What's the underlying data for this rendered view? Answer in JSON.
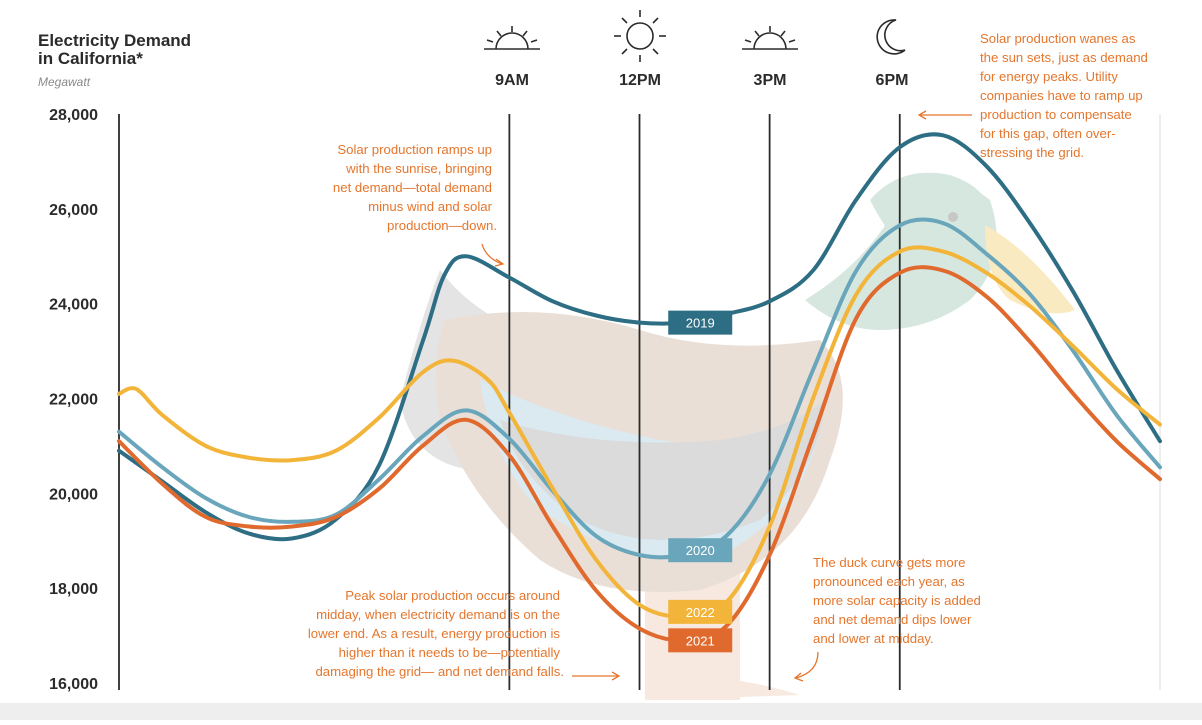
{
  "colors": {
    "y2019": "#2d6e84",
    "y2020": "#6aa6bb",
    "y2021": "#e0692e",
    "y2022": "#f2b53a",
    "annotation": "#e5762d",
    "text": "#2b2b2b",
    "gridline": "#2b2b2b"
  },
  "chart_data": {
    "type": "line",
    "title": "Electricity Demand in California*",
    "title_lines": [
      "Electricity Demand",
      "in California*"
    ],
    "ylabel": "Megawatt",
    "ylim": [
      16000,
      28000
    ],
    "yticks": [
      {
        "value": 16000,
        "label": "16,000"
      },
      {
        "value": 18000,
        "label": "18,000"
      },
      {
        "value": 20000,
        "label": "20,000"
      },
      {
        "value": 22000,
        "label": "22,000"
      },
      {
        "value": 24000,
        "label": "24,000"
      },
      {
        "value": 26000,
        "label": "26,000"
      },
      {
        "value": 28000,
        "label": "28,000"
      }
    ],
    "xlim": [
      0,
      24
    ],
    "x_gridlines": [
      0,
      9,
      12,
      15,
      18,
      24
    ],
    "time_labels": [
      {
        "x": 9,
        "label": "9AM",
        "icon": "sunrise-icon"
      },
      {
        "x": 12,
        "label": "12PM",
        "icon": "sun-icon"
      },
      {
        "x": 15,
        "label": "3PM",
        "icon": "afternoon-sun-icon"
      },
      {
        "x": 18,
        "label": "6PM",
        "icon": "moon-icon"
      }
    ],
    "series": [
      {
        "name": "2019",
        "key": "y2019",
        "points": [
          [
            0,
            20900
          ],
          [
            1,
            20250
          ],
          [
            2,
            19600
          ],
          [
            3,
            19150
          ],
          [
            4,
            19050
          ],
          [
            5,
            19450
          ],
          [
            6,
            20600
          ],
          [
            7,
            23200
          ],
          [
            7.5,
            24600
          ],
          [
            8,
            25000
          ],
          [
            9,
            24550
          ],
          [
            10,
            24050
          ],
          [
            11,
            23750
          ],
          [
            12,
            23600
          ],
          [
            13,
            23600
          ],
          [
            14,
            23780
          ],
          [
            15,
            24050
          ],
          [
            16,
            24700
          ],
          [
            17,
            26200
          ],
          [
            18,
            27300
          ],
          [
            19,
            27550
          ],
          [
            20,
            26900
          ],
          [
            21,
            25700
          ],
          [
            22,
            24250
          ],
          [
            23,
            22600
          ],
          [
            24,
            21100
          ]
        ],
        "label_at": [
          13.4,
          23600
        ]
      },
      {
        "name": "2020",
        "key": "y2020",
        "points": [
          [
            0,
            21300
          ],
          [
            1,
            20550
          ],
          [
            2,
            19900
          ],
          [
            3,
            19500
          ],
          [
            4,
            19400
          ],
          [
            5,
            19550
          ],
          [
            6,
            20300
          ],
          [
            7,
            21200
          ],
          [
            8,
            21750
          ],
          [
            9,
            21150
          ],
          [
            10,
            20050
          ],
          [
            11,
            19100
          ],
          [
            12,
            18700
          ],
          [
            13,
            18700
          ],
          [
            14,
            19100
          ],
          [
            15,
            20400
          ],
          [
            16,
            22600
          ],
          [
            17,
            24700
          ],
          [
            18,
            25650
          ],
          [
            19,
            25700
          ],
          [
            20,
            25050
          ],
          [
            21,
            24200
          ],
          [
            22,
            23000
          ],
          [
            23,
            21650
          ],
          [
            24,
            20550
          ]
        ],
        "label_at": [
          13.4,
          18800
        ]
      },
      {
        "name": "2021",
        "key": "y2021",
        "points": [
          [
            0,
            21100
          ],
          [
            1,
            20200
          ],
          [
            2,
            19500
          ],
          [
            3,
            19300
          ],
          [
            4,
            19300
          ],
          [
            5,
            19500
          ],
          [
            6,
            20100
          ],
          [
            7,
            21000
          ],
          [
            8,
            21550
          ],
          [
            9,
            20800
          ],
          [
            10,
            19300
          ],
          [
            11,
            17950
          ],
          [
            12,
            17150
          ],
          [
            13,
            16900
          ],
          [
            14,
            17200
          ],
          [
            15,
            18700
          ],
          [
            16,
            21200
          ],
          [
            17,
            23700
          ],
          [
            18,
            24650
          ],
          [
            19,
            24700
          ],
          [
            20,
            24150
          ],
          [
            21,
            23200
          ],
          [
            22,
            22100
          ],
          [
            23,
            21100
          ],
          [
            24,
            20300
          ]
        ],
        "label_at": [
          13.4,
          16900
        ]
      },
      {
        "name": "2022",
        "key": "y2022",
        "points": [
          [
            0,
            22100
          ],
          [
            0.4,
            22200
          ],
          [
            1,
            21650
          ],
          [
            2,
            21000
          ],
          [
            3,
            20750
          ],
          [
            4,
            20700
          ],
          [
            5,
            20900
          ],
          [
            6,
            21600
          ],
          [
            7,
            22550
          ],
          [
            7.7,
            22800
          ],
          [
            8.5,
            22400
          ],
          [
            9,
            21700
          ],
          [
            10,
            20100
          ],
          [
            11,
            18600
          ],
          [
            12,
            17650
          ],
          [
            13,
            17400
          ],
          [
            14,
            17700
          ],
          [
            15,
            19300
          ],
          [
            16,
            22000
          ],
          [
            17,
            24200
          ],
          [
            18,
            25100
          ],
          [
            19,
            25100
          ],
          [
            20,
            24650
          ],
          [
            21,
            23950
          ],
          [
            22,
            23100
          ],
          [
            23,
            22200
          ],
          [
            24,
            21450
          ]
        ],
        "label_at": [
          13.4,
          17500
        ]
      }
    ],
    "annotations": [
      {
        "key": "sunrise",
        "lines": [
          "Solar production ramps up",
          "with the sunrise, bringing",
          "net demand—total demand",
          "minus wind and solar",
          "production—down."
        ]
      },
      {
        "key": "sunset",
        "lines": [
          "Solar production wanes as",
          "the sun sets, just as demand",
          "for energy peaks. Utility",
          "companies have to ramp up",
          "production to compensate",
          "for this gap, often over-",
          "stressing the grid."
        ]
      },
      {
        "key": "midday",
        "lines": [
          "Peak solar production occurs around",
          "midday, when electricity demand is on the",
          "lower end. As a result, energy production is",
          "higher than it needs to be—potentially",
          "damaging the grid— and net demand falls."
        ]
      },
      {
        "key": "duck",
        "lines": [
          "The duck curve gets more",
          "pronounced each year, as",
          "more solar capacity is added",
          "and net demand dips lower",
          "and lower at midday."
        ]
      }
    ]
  }
}
